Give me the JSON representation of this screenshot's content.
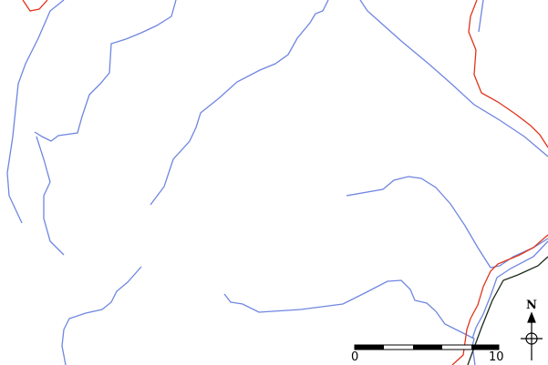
{
  "map": {
    "colors": {
      "stream": "#6f86e0",
      "road_red": "#e0341c",
      "rail": "#1a2a1a",
      "background": "#ffffff"
    },
    "scale_bar": {
      "start_label": "0",
      "end_label": "10"
    },
    "north_arrow": {
      "label": "N"
    }
  }
}
